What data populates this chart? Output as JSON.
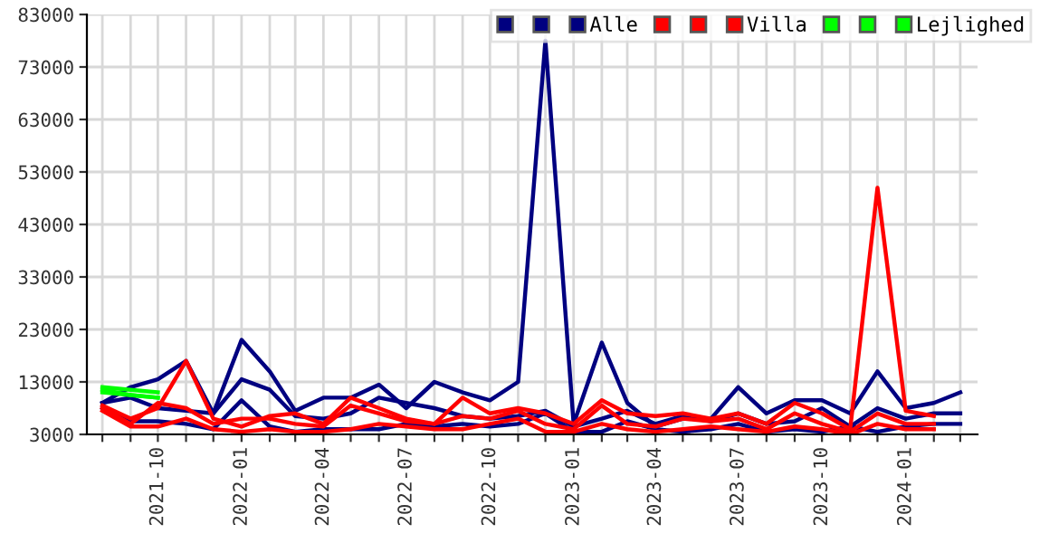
{
  "chart_data": {
    "type": "line",
    "x": [
      "2021-08",
      "2021-09",
      "2021-10",
      "2021-11",
      "2021-12",
      "2022-01",
      "2022-02",
      "2022-03",
      "2022-04",
      "2022-05",
      "2022-06",
      "2022-07",
      "2022-08",
      "2022-09",
      "2022-10",
      "2022-11",
      "2022-12",
      "2023-01",
      "2023-02",
      "2023-03",
      "2023-04",
      "2023-05",
      "2023-06",
      "2023-07",
      "2023-08",
      "2023-09",
      "2023-10",
      "2023-11",
      "2023-12",
      "2024-01",
      "2024-02",
      "2024-03"
    ],
    "series": [
      {
        "name": null,
        "color": "#000080",
        "values": [
          9000,
          12000,
          13500,
          17000,
          7000,
          21000,
          15000,
          7500,
          10000,
          10000,
          12500,
          8000,
          13000,
          11000,
          9500,
          13000,
          78000,
          5000,
          20500,
          9000,
          4500,
          6000,
          6000,
          12000,
          7000,
          9500,
          9500,
          7000,
          15000,
          8000,
          9000,
          11000
        ]
      },
      {
        "name": null,
        "color": "#000080",
        "values": [
          9000,
          10000,
          8000,
          7500,
          7000,
          13500,
          11500,
          6500,
          6000,
          7000,
          10000,
          9000,
          8000,
          6500,
          6000,
          6500,
          7500,
          4500,
          6000,
          7500,
          5000,
          6500,
          5500,
          7000,
          5000,
          5500,
          8000,
          4500,
          8000,
          6000,
          7000,
          7000
        ]
      },
      {
        "name": "Alle",
        "color": "#000080",
        "values": [
          8000,
          5500,
          5500,
          5000,
          4000,
          9500,
          4500,
          3500,
          4000,
          4000,
          4000,
          5000,
          4500,
          5000,
          4500,
          5000,
          7000,
          3500,
          3500,
          5500,
          4000,
          3500,
          4000,
          5000,
          3500,
          4000,
          3500,
          4500,
          3500,
          4500,
          5000,
          5000
        ]
      },
      {
        "name": null,
        "color": "#ff0000",
        "values": [
          8500,
          6000,
          8000,
          17000,
          6000,
          4500,
          6500,
          7000,
          5000,
          10000,
          8000,
          6000,
          5000,
          10000,
          7000,
          8000,
          7000,
          5000,
          9500,
          7000,
          6500,
          7000,
          6000,
          7000,
          5000,
          9000,
          7000,
          4000,
          50000,
          7500,
          6500,
          null
        ]
      },
      {
        "name": null,
        "color": "#ff0000",
        "values": [
          8000,
          5000,
          9000,
          8000,
          5000,
          6000,
          6000,
          5000,
          4500,
          8500,
          7000,
          5500,
          5000,
          6500,
          6000,
          7500,
          5000,
          4000,
          8500,
          5000,
          4500,
          6000,
          5500,
          6000,
          4000,
          7000,
          5000,
          3500,
          7000,
          5000,
          5000,
          null
        ]
      },
      {
        "name": "Villa",
        "color": "#ff0000",
        "values": [
          7500,
          4500,
          4500,
          6000,
          4000,
          3500,
          4000,
          3500,
          3500,
          4000,
          5000,
          4500,
          4000,
          4000,
          5000,
          6000,
          3500,
          3500,
          5000,
          4000,
          3500,
          4000,
          4500,
          4000,
          3500,
          4500,
          4000,
          3000,
          5000,
          4000,
          4000,
          null
        ]
      },
      {
        "name": null,
        "color": "#00ff00",
        "x": [
          "2021-08",
          "2021-09",
          "2021-10"
        ],
        "values": [
          12000,
          11500,
          11000
        ]
      },
      {
        "name": null,
        "color": "#00ff00",
        "x": [
          "2021-08",
          "2021-09",
          "2021-10"
        ],
        "values": [
          11500,
          10500,
          10000
        ]
      },
      {
        "name": "Lejlighed",
        "color": "#00ff00",
        "x": [
          "2021-08",
          "2021-09",
          "2021-10"
        ],
        "values": [
          11000,
          10500,
          10000
        ]
      }
    ],
    "ylim": [
      3000,
      83000
    ],
    "yticks": [
      3000,
      13000,
      23000,
      33000,
      43000,
      53000,
      63000,
      73000,
      83000
    ],
    "xlim": [
      "2021-07-15",
      "2024-03-20"
    ],
    "xticks": [
      {
        "value": "2021-08",
        "label": null
      },
      {
        "value": "2021-09",
        "label": null
      },
      "2021-10",
      {
        "value": "2021-11",
        "label": null
      },
      {
        "value": "2021-12",
        "label": null
      },
      "2022-01",
      {
        "value": "2022-02",
        "label": null
      },
      {
        "value": "2022-03",
        "label": null
      },
      "2022-04",
      {
        "value": "2022-05",
        "label": null
      },
      {
        "value": "2022-06",
        "label": null
      },
      "2022-07",
      {
        "value": "2022-08",
        "label": null
      },
      {
        "value": "2022-09",
        "label": null
      },
      "2022-10",
      {
        "value": "2022-11",
        "label": null
      },
      {
        "value": "2022-12",
        "label": null
      },
      "2023-01",
      {
        "value": "2023-02",
        "label": null
      },
      {
        "value": "2023-03",
        "label": null
      },
      "2023-04",
      {
        "value": "2023-05",
        "label": null
      },
      {
        "value": "2023-06",
        "label": null
      },
      "2023-07",
      {
        "value": "2023-08",
        "label": null
      },
      {
        "value": "2023-09",
        "label": null
      },
      "2023-10",
      {
        "value": "2023-11",
        "label": null
      },
      {
        "value": "2023-12",
        "label": null
      },
      "2024-01",
      {
        "value": "2024-02",
        "label": null
      },
      {
        "value": "2024-03",
        "label": null
      }
    ],
    "grid": true,
    "legend": "top right",
    "marker": "none",
    "line_style": "solid"
  }
}
